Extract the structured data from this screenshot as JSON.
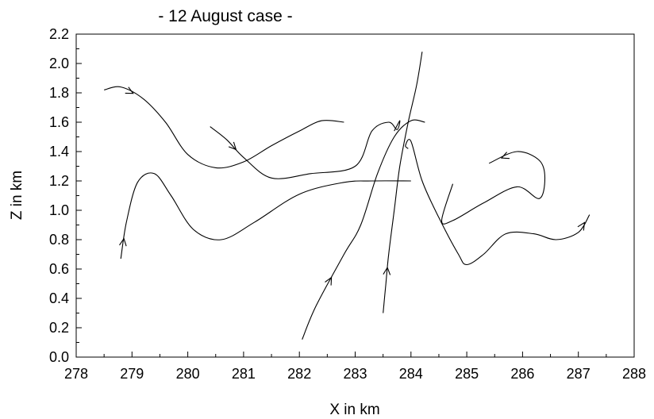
{
  "chart_data": {
    "type": "line",
    "title": "- 12 August case -",
    "xlabel": "X in km",
    "ylabel": "Z in km",
    "xlim": [
      278,
      288
    ],
    "ylim": [
      0.0,
      2.2
    ],
    "xticks": [
      "278",
      "279",
      "280",
      "281",
      "282",
      "283",
      "284",
      "285",
      "286",
      "287",
      "288"
    ],
    "yticks": [
      "0.0",
      "0.2",
      "0.4",
      "0.6",
      "0.8",
      "1.0",
      "1.2",
      "1.4",
      "1.6",
      "1.8",
      "2.0",
      "2.2"
    ],
    "grid": false,
    "series": [
      {
        "x": [
          278.5,
          278.8,
          279.2,
          279.6,
          280.0,
          280.5,
          281.0,
          281.5,
          282.0,
          282.4,
          282.8
        ],
        "y": [
          1.82,
          1.84,
          1.76,
          1.6,
          1.38,
          1.29,
          1.33,
          1.44,
          1.54,
          1.61,
          1.6
        ],
        "arrow_at": 1
      },
      {
        "x": [
          280.4,
          280.7,
          281.0,
          281.5,
          282.2,
          283.0,
          283.3,
          283.6,
          283.75,
          283.8,
          283.7
        ],
        "y": [
          1.57,
          1.48,
          1.36,
          1.22,
          1.25,
          1.3,
          1.54,
          1.6,
          1.55,
          1.61,
          1.54
        ],
        "arrow_at": 1
      },
      {
        "x": [
          278.8,
          278.9,
          279.1,
          279.4,
          279.7,
          280.1,
          280.6,
          281.2,
          282.0,
          282.8,
          283.3,
          284.0
        ],
        "y": [
          0.67,
          0.92,
          1.19,
          1.25,
          1.1,
          0.87,
          0.8,
          0.92,
          1.11,
          1.19,
          1.2,
          1.2
        ],
        "arrow_at": 0
      },
      {
        "x": [
          282.05,
          282.3,
          282.8,
          283.1,
          283.4,
          283.7,
          284.0,
          284.25
        ],
        "y": [
          0.12,
          0.35,
          0.7,
          0.9,
          1.25,
          1.5,
          1.61,
          1.6
        ],
        "arrow_at": 1
      },
      {
        "x": [
          283.5,
          283.55,
          283.6,
          283.7,
          283.8,
          283.95,
          284.1,
          284.2
        ],
        "y": [
          0.3,
          0.5,
          0.7,
          1.0,
          1.3,
          1.6,
          1.85,
          2.08
        ],
        "arrow_at": 1
      },
      {
        "x": [
          283.95,
          283.9,
          284.0,
          284.2,
          284.5,
          284.85,
          285.0,
          285.3,
          285.7,
          286.2,
          286.6,
          287.0,
          287.2
        ],
        "y": [
          1.42,
          1.44,
          1.47,
          1.2,
          0.95,
          0.7,
          0.63,
          0.7,
          0.84,
          0.84,
          0.8,
          0.85,
          0.97
        ],
        "arrow_at": 11
      },
      {
        "x": [
          284.75,
          284.55,
          284.75,
          285.3,
          285.9,
          286.3,
          286.4,
          286.3,
          285.9,
          285.4
        ],
        "y": [
          1.18,
          0.93,
          0.93,
          1.05,
          1.16,
          1.08,
          1.22,
          1.34,
          1.4,
          1.32
        ],
        "arrow_at": 8
      }
    ]
  }
}
